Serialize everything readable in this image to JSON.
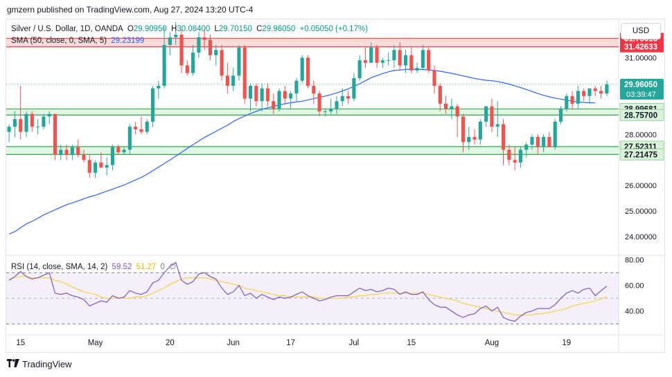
{
  "header": {
    "published": "gmzern published on TradingView.com, Aug 27, 2024 13:20 UTC-4"
  },
  "legend": {
    "symbol": "Silver / U.S. Dollar, 1D, OANDA",
    "o_label": "O",
    "o": "29.90950",
    "h_label": "H",
    "h": "30.08400",
    "l_label": "L",
    "l": "29.70150",
    "c_label": "C",
    "c": "29.96050",
    "change": "+0.05050 (+0.17%)",
    "sma_label": "SMA (50, close, 0, SMA, 5)",
    "sma_value": "29.23199",
    "rsi_label": "RSI (14, close, SMA, 14, 2)",
    "rsi_value": "59.52",
    "rsi_sma_value": "51.27",
    "rsi_extra_value": "0",
    "rsi_extra_icon": "∅"
  },
  "currency_button": "USD",
  "branding": {
    "name": "TradingView",
    "logo_icon": "tradingview-logo-icon"
  },
  "colors": {
    "up": "#26a69a",
    "down": "#ef5350",
    "sma": "#2962ff",
    "rsi": "#7e57c2",
    "rsi_ma": "#f5d14a",
    "resistance_zone": "#f7cfcf",
    "support_zone": "#d9f2d9"
  },
  "chart_data": {
    "type": "candlestick",
    "y_range": [
      23.3,
      32.5
    ],
    "price_ticks": [
      "31.00000",
      "28.00000",
      "26.00000",
      "25.00000",
      "24.00000"
    ],
    "x_labels": [
      {
        "label": "15",
        "index": 2
      },
      {
        "label": "May",
        "index": 15
      },
      {
        "label": "20",
        "index": 28
      },
      {
        "label": "Jun",
        "index": 39
      },
      {
        "label": "17",
        "index": 49
      },
      {
        "label": "Jul",
        "index": 60
      },
      {
        "label": "15",
        "index": 70
      },
      {
        "label": "Aug",
        "index": 84
      },
      {
        "label": "19",
        "index": 97
      }
    ],
    "zones": [
      {
        "low": 31.42633,
        "high": 31.75618,
        "type": "resistance",
        "labels": [
          "31.75618",
          "31.42633"
        ]
      },
      {
        "low": 28.757,
        "high": 28.99681,
        "type": "support",
        "labels": [
          "28.99681",
          "28.75700"
        ]
      },
      {
        "low": 27.21475,
        "high": 27.52311,
        "type": "support",
        "labels": [
          "27.52311",
          "27.21475"
        ]
      }
    ],
    "last_price": {
      "value": 29.9605,
      "label": "29.96050",
      "countdown": "03:39:47"
    },
    "candles": [
      [
        28.1,
        28.4,
        27.7,
        28.3
      ],
      [
        28.3,
        28.9,
        27.9,
        28.6
      ],
      [
        28.6,
        29.9,
        27.8,
        28.1
      ],
      [
        28.1,
        28.9,
        27.9,
        28.8
      ],
      [
        28.8,
        28.9,
        28.1,
        28.3
      ],
      [
        28.3,
        28.6,
        28.0,
        28.3
      ],
      [
        28.3,
        28.8,
        28.2,
        28.7
      ],
      [
        28.7,
        28.9,
        28.4,
        28.8
      ],
      [
        28.8,
        28.8,
        27.0,
        27.2
      ],
      [
        27.2,
        27.6,
        27.0,
        27.4
      ],
      [
        27.4,
        27.6,
        27.0,
        27.2
      ],
      [
        27.2,
        27.6,
        27.0,
        27.5
      ],
      [
        27.5,
        27.8,
        27.1,
        27.2
      ],
      [
        27.2,
        27.4,
        26.9,
        27.0
      ],
      [
        27.0,
        27.2,
        26.3,
        26.5
      ],
      [
        26.5,
        27.0,
        26.3,
        26.9
      ],
      [
        26.9,
        27.3,
        26.7,
        26.7
      ],
      [
        26.7,
        27.1,
        26.4,
        26.8
      ],
      [
        26.8,
        27.6,
        26.6,
        27.5
      ],
      [
        27.5,
        27.6,
        27.2,
        27.3
      ],
      [
        27.3,
        27.5,
        27.2,
        27.4
      ],
      [
        27.4,
        28.4,
        27.2,
        28.3
      ],
      [
        28.3,
        28.5,
        28.0,
        28.2
      ],
      [
        28.2,
        28.7,
        28.0,
        28.1
      ],
      [
        28.1,
        28.6,
        28.0,
        28.5
      ],
      [
        28.5,
        29.9,
        28.3,
        29.8
      ],
      [
        29.8,
        30.1,
        29.4,
        29.9
      ],
      [
        29.9,
        32.2,
        29.8,
        31.5
      ],
      [
        31.5,
        32.0,
        31.1,
        31.8
      ],
      [
        31.8,
        32.4,
        31.5,
        31.9
      ],
      [
        31.9,
        32.1,
        30.4,
        30.7
      ],
      [
        30.7,
        30.9,
        30.3,
        30.4
      ],
      [
        30.4,
        31.5,
        30.3,
        31.2
      ],
      [
        31.2,
        32.0,
        31.0,
        31.8
      ],
      [
        31.8,
        32.1,
        31.3,
        31.7
      ],
      [
        31.7,
        31.9,
        30.9,
        31.1
      ],
      [
        31.1,
        31.5,
        30.7,
        31.3
      ],
      [
        31.3,
        31.5,
        30.1,
        30.3
      ],
      [
        30.3,
        30.8,
        29.6,
        29.9
      ],
      [
        29.9,
        30.6,
        29.7,
        30.3
      ],
      [
        30.3,
        31.5,
        30.1,
        31.4
      ],
      [
        31.4,
        31.5,
        29.2,
        29.4
      ],
      [
        29.4,
        30.0,
        28.9,
        29.9
      ],
      [
        29.9,
        30.0,
        29.1,
        29.3
      ],
      [
        29.3,
        30.0,
        28.9,
        29.8
      ],
      [
        29.8,
        30.0,
        29.1,
        29.3
      ],
      [
        29.3,
        29.6,
        28.8,
        29.0
      ],
      [
        29.0,
        29.8,
        28.9,
        29.7
      ],
      [
        29.7,
        29.9,
        29.2,
        29.4
      ],
      [
        29.4,
        29.7,
        29.0,
        29.6
      ],
      [
        29.6,
        30.2,
        29.3,
        30.1
      ],
      [
        30.1,
        31.1,
        30.0,
        31.0
      ],
      [
        31.0,
        31.1,
        29.8,
        29.9
      ],
      [
        29.9,
        30.1,
        29.2,
        29.6
      ],
      [
        29.6,
        29.7,
        28.7,
        28.9
      ],
      [
        28.9,
        29.0,
        28.7,
        28.9
      ],
      [
        28.9,
        29.4,
        28.8,
        29.0
      ],
      [
        29.0,
        29.5,
        28.8,
        29.3
      ],
      [
        29.3,
        29.8,
        29.1,
        29.5
      ],
      [
        29.5,
        29.7,
        29.2,
        29.4
      ],
      [
        29.4,
        30.4,
        29.3,
        30.2
      ],
      [
        30.2,
        31.1,
        30.1,
        30.9
      ],
      [
        30.9,
        31.4,
        30.6,
        30.8
      ],
      [
        30.8,
        31.6,
        30.8,
        31.4
      ],
      [
        31.4,
        31.5,
        30.6,
        30.8
      ],
      [
        30.8,
        31.0,
        30.6,
        30.9
      ],
      [
        30.9,
        31.2,
        30.7,
        30.9
      ],
      [
        30.9,
        31.5,
        30.6,
        31.3
      ],
      [
        31.3,
        31.6,
        30.5,
        30.7
      ],
      [
        30.7,
        31.3,
        30.4,
        31.1
      ],
      [
        31.1,
        31.4,
        30.4,
        30.5
      ],
      [
        30.5,
        30.8,
        30.4,
        30.6
      ],
      [
        30.6,
        31.5,
        30.5,
        31.3
      ],
      [
        31.3,
        31.4,
        30.4,
        30.5
      ],
      [
        30.5,
        30.7,
        29.6,
        29.9
      ],
      [
        29.9,
        30.0,
        28.9,
        29.2
      ],
      [
        29.2,
        29.5,
        28.8,
        29.0
      ],
      [
        29.0,
        29.4,
        28.6,
        29.1
      ],
      [
        29.1,
        29.2,
        27.9,
        28.7
      ],
      [
        28.7,
        28.8,
        27.3,
        27.7
      ],
      [
        27.7,
        28.3,
        27.4,
        27.9
      ],
      [
        27.9,
        28.2,
        27.6,
        27.8
      ],
      [
        27.8,
        28.6,
        27.6,
        28.5
      ],
      [
        28.5,
        29.1,
        28.3,
        29.1
      ],
      [
        29.1,
        29.4,
        28.1,
        28.3
      ],
      [
        28.3,
        29.3,
        27.9,
        28.4
      ],
      [
        28.4,
        28.6,
        26.8,
        27.4
      ],
      [
        27.4,
        27.6,
        26.8,
        27.0
      ],
      [
        27.0,
        27.5,
        26.6,
        26.9
      ],
      [
        26.9,
        27.5,
        26.7,
        27.4
      ],
      [
        27.4,
        27.7,
        27.1,
        27.6
      ],
      [
        27.6,
        28.0,
        27.4,
        27.9
      ],
      [
        27.9,
        28.0,
        27.2,
        27.5
      ],
      [
        27.5,
        28.0,
        27.3,
        27.9
      ],
      [
        27.9,
        28.1,
        27.5,
        27.5
      ],
      [
        27.5,
        28.6,
        27.4,
        28.5
      ],
      [
        28.5,
        29.1,
        28.4,
        29.0
      ],
      [
        29.0,
        29.6,
        28.9,
        29.5
      ],
      [
        29.5,
        29.7,
        29.0,
        29.2
      ],
      [
        29.2,
        29.9,
        29.0,
        29.7
      ],
      [
        29.7,
        29.8,
        29.3,
        29.5
      ],
      [
        29.5,
        29.8,
        29.2,
        29.8
      ],
      [
        29.8,
        29.9,
        29.5,
        29.7
      ],
      [
        29.7,
        29.9,
        29.4,
        29.6
      ],
      [
        29.6,
        30.1,
        29.5,
        29.96
      ]
    ],
    "sma_values": [
      24.1,
      24.2,
      24.35,
      24.5,
      24.6,
      24.72,
      24.85,
      24.95,
      25.05,
      25.15,
      25.25,
      25.32,
      25.4,
      25.48,
      25.56,
      25.62,
      25.7,
      25.78,
      25.86,
      25.94,
      26.02,
      26.12,
      26.22,
      26.32,
      26.44,
      26.58,
      26.72,
      26.86,
      27.0,
      27.15,
      27.3,
      27.45,
      27.6,
      27.74,
      27.88,
      28.0,
      28.12,
      28.24,
      28.36,
      28.5,
      28.62,
      28.72,
      28.82,
      28.9,
      28.98,
      29.04,
      29.1,
      29.15,
      29.2,
      29.24,
      29.27,
      29.3,
      29.35,
      29.4,
      29.45,
      29.5,
      29.56,
      29.62,
      29.7,
      29.78,
      29.88,
      29.98,
      30.1,
      30.22,
      30.3,
      30.38,
      30.45,
      30.5,
      30.52,
      30.54,
      30.55,
      30.55,
      30.54,
      30.52,
      30.5,
      30.47,
      30.43,
      30.39,
      30.34,
      30.29,
      30.24,
      30.19,
      30.15,
      30.12,
      30.1,
      30.07,
      30.02,
      29.97,
      29.9,
      29.83,
      29.76,
      29.68,
      29.6,
      29.53,
      29.47,
      29.42,
      29.38,
      29.34,
      29.3,
      29.27,
      29.25,
      29.24,
      29.23
    ],
    "rsi": {
      "ticks": [
        "80.00",
        "60.00",
        "40.00"
      ],
      "band": [
        30,
        70
      ],
      "range": [
        22,
        82
      ],
      "values": [
        64,
        67,
        71,
        67,
        65,
        66,
        68,
        70,
        54,
        53,
        54,
        52,
        51,
        49,
        44,
        46,
        48,
        47,
        52,
        50,
        51,
        56,
        54,
        53,
        55,
        62,
        64,
        70,
        75,
        78,
        64,
        61,
        63,
        69,
        70,
        67,
        65,
        58,
        53,
        55,
        60,
        52,
        54,
        50,
        53,
        51,
        49,
        51,
        50,
        51,
        53,
        55,
        52,
        50,
        48,
        49,
        51,
        52,
        52,
        52,
        55,
        58,
        56,
        57,
        55,
        56,
        58,
        57,
        53,
        55,
        53,
        53,
        55,
        49,
        45,
        43,
        43,
        40,
        37,
        35,
        37,
        38,
        42,
        44,
        40,
        43,
        35,
        33,
        32,
        36,
        39,
        40,
        42,
        42,
        42,
        45,
        50,
        54,
        56,
        54,
        57,
        58,
        52,
        56,
        59.5
      ],
      "ma_values": [
        65,
        66,
        67,
        67,
        66,
        66,
        66,
        66,
        64,
        63,
        61,
        59,
        57,
        55,
        54,
        53,
        51,
        50,
        50,
        50,
        50,
        50,
        51,
        51,
        52,
        54,
        56,
        58,
        61,
        63,
        65,
        66,
        66,
        66,
        66,
        65,
        64,
        63,
        62,
        61,
        60,
        58,
        57,
        56,
        55,
        54,
        53,
        52,
        52,
        51,
        51,
        51,
        51,
        51,
        50,
        50,
        50,
        50,
        50,
        51,
        51,
        52,
        52,
        53,
        53,
        54,
        54,
        54,
        54,
        54,
        54,
        54,
        54,
        53,
        52,
        51,
        50,
        49,
        48,
        46,
        45,
        44,
        43,
        42,
        41,
        40,
        39,
        38,
        37,
        37,
        37,
        37,
        38,
        38,
        39,
        40,
        41,
        42,
        44,
        45,
        46,
        47,
        48,
        49.5,
        51.27
      ]
    }
  }
}
